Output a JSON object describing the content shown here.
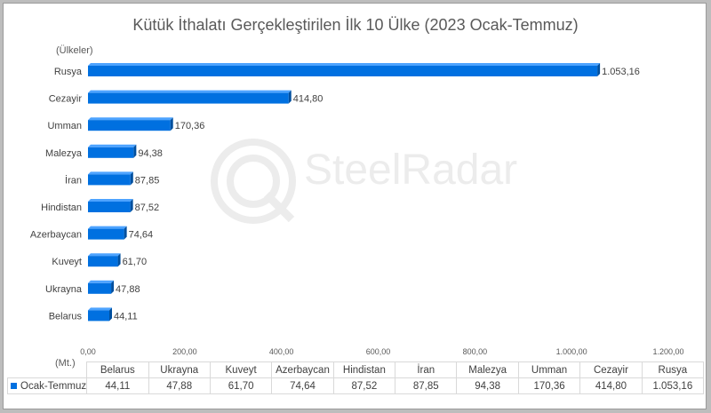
{
  "chart_data": {
    "type": "bar",
    "orientation": "horizontal",
    "title": "Kütük İthalatı Gerçekleştirilen İlk 10 Ülke (2023 Ocak-Temmuz)",
    "ylabel": "(Ülkeler)",
    "xlabel": "(Mt.)",
    "categories": [
      "Belarus",
      "Ukrayna",
      "Kuveyt",
      "Azerbaycan",
      "Hindistan",
      "İran",
      "Malezya",
      "Umman",
      "Cezayir",
      "Rusya"
    ],
    "series": [
      {
        "name": "Ocak-Temmuz",
        "values": [
          44.11,
          47.88,
          61.7,
          74.64,
          87.52,
          87.85,
          94.38,
          170.36,
          414.8,
          1053.16
        ],
        "labels": [
          "44,11",
          "47,88",
          "61,70",
          "74,64",
          "87,52",
          "87,85",
          "94,38",
          "170,36",
          "414,80",
          "1.053,16"
        ]
      }
    ],
    "xlim": [
      0,
      1200
    ],
    "xticks": [
      0,
      200,
      400,
      600,
      800,
      1000,
      1200
    ],
    "xtick_labels": [
      "0,00",
      "200,00",
      "400,00",
      "600,00",
      "800,00",
      "1.000,00",
      "1.200,00"
    ],
    "grid": false,
    "legend": "data-table",
    "data_table": true,
    "bar_color": "#0070e0"
  },
  "watermark": "SteelRadar",
  "colors": {
    "bar": "#0070e0",
    "bar_top": "#4da3ff",
    "bar_side": "#004f9e",
    "text": "#595959"
  }
}
